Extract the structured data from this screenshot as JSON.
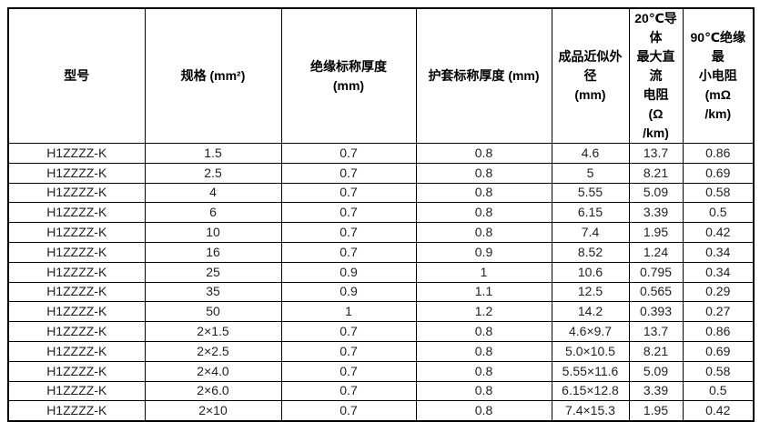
{
  "colors": {
    "background": "#ffffff",
    "border": "#000000",
    "header_text": "#000000",
    "body_text": "#1f1f1f"
  },
  "table": {
    "columns": [
      {
        "id": "model",
        "label": "型号"
      },
      {
        "id": "spec",
        "label": "规格 (mm²)"
      },
      {
        "id": "insulation-thickness",
        "label": "绝缘标称厚度\n(mm)"
      },
      {
        "id": "sheath-thickness",
        "label": "护套标称厚度 (mm)"
      },
      {
        "id": "outer-diameter",
        "label": "成品近似外径\n(mm)"
      },
      {
        "id": "dc-resistance-20c",
        "label": "20℃导体\n最大直流\n电阻\n(Ω\n/km)"
      },
      {
        "id": "min-resistance-90c",
        "label": "90℃绝缘最\n小电阻\n(mΩ\n/km)"
      }
    ],
    "rows": [
      [
        "H1ZZZZ-K",
        "1.5",
        "0.7",
        "0.8",
        "4.6",
        "13.7",
        "0.86"
      ],
      [
        "H1ZZZZ-K",
        "2.5",
        "0.7",
        "0.8",
        "5",
        "8.21",
        "0.69"
      ],
      [
        "H1ZZZZ-K",
        "4",
        "0.7",
        "0.8",
        "5.55",
        "5.09",
        "0.58"
      ],
      [
        "H1ZZZZ-K",
        "6",
        "0.7",
        "0.8",
        "6.15",
        "3.39",
        "0.5"
      ],
      [
        "H1ZZZZ-K",
        "10",
        "0.7",
        "0.8",
        "7.4",
        "1.95",
        "0.42"
      ],
      [
        "H1ZZZZ-K",
        "16",
        "0.7",
        "0.9",
        "8.52",
        "1.24",
        "0.34"
      ],
      [
        "H1ZZZZ-K",
        "25",
        "0.9",
        "1",
        "10.6",
        "0.795",
        "0.34"
      ],
      [
        "H1ZZZZ-K",
        "35",
        "0.9",
        "1.1",
        "12.5",
        "0.565",
        "0.29"
      ],
      [
        "H1ZZZZ-K",
        "50",
        "1",
        "1.2",
        "14.2",
        "0.393",
        "0.27"
      ],
      [
        "H1ZZZZ-K",
        "2×1.5",
        "0.7",
        "0.8",
        "4.6×9.7",
        "13.7",
        "0.86"
      ],
      [
        "H1ZZZZ-K",
        "2×2.5",
        "0.7",
        "0.8",
        "5.0×10.5",
        "8.21",
        "0.69"
      ],
      [
        "H1ZZZZ-K",
        "2×4.0",
        "0.7",
        "0.8",
        "5.55×11.6",
        "5.09",
        "0.58"
      ],
      [
        "H1ZZZZ-K",
        "2×6.0",
        "0.7",
        "0.8",
        "6.15×12.8",
        "3.39",
        "0.5"
      ],
      [
        "H1ZZZZ-K",
        "2×10",
        "0.7",
        "0.8",
        "7.4×15.3",
        "1.95",
        "0.42"
      ]
    ]
  }
}
